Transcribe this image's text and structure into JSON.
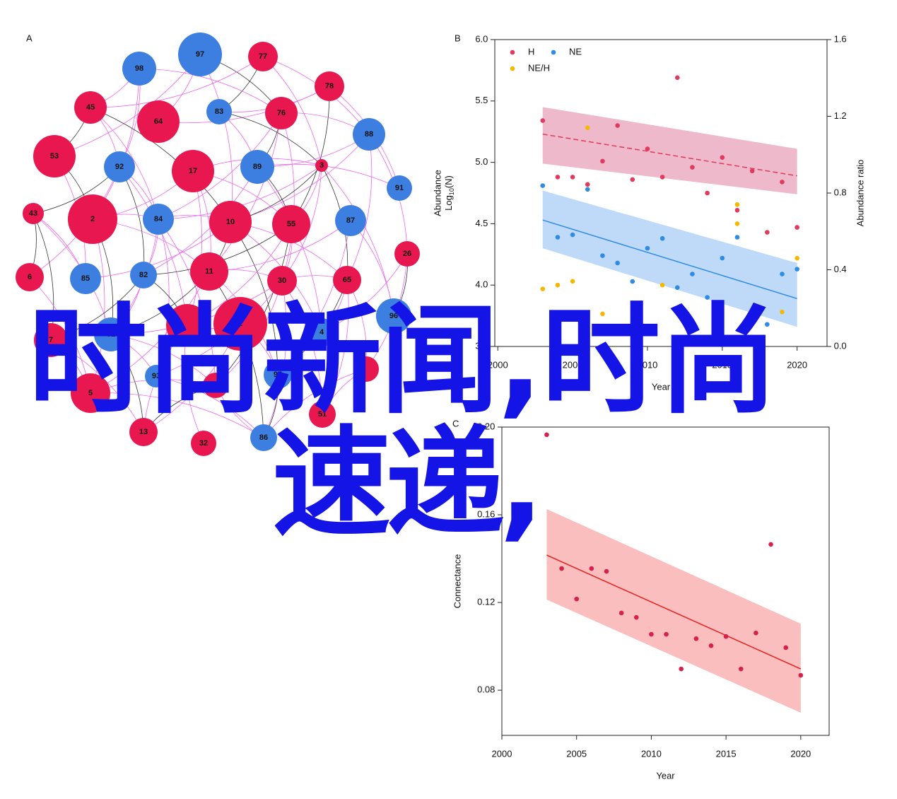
{
  "panel_a": {
    "label": "A",
    "nodes": [
      {
        "label": "97",
        "color": "#3d7fe0"
      },
      {
        "label": "77",
        "color": "#e8174f"
      },
      {
        "label": "98",
        "color": "#3d7fe0"
      },
      {
        "label": "78",
        "color": "#e8174f"
      },
      {
        "label": "45",
        "color": "#e8174f"
      },
      {
        "label": "64",
        "color": "#e8174f"
      },
      {
        "label": "83",
        "color": "#3d7fe0"
      },
      {
        "label": "76",
        "color": "#e8174f"
      },
      {
        "label": "88",
        "color": "#3d7fe0"
      },
      {
        "label": "53",
        "color": "#e8174f"
      },
      {
        "label": "92",
        "color": "#3d7fe0"
      },
      {
        "label": "17",
        "color": "#e8174f"
      },
      {
        "label": "89",
        "color": "#3d7fe0"
      },
      {
        "label": "3",
        "color": "#e8174f"
      },
      {
        "label": "91",
        "color": "#3d7fe0"
      },
      {
        "label": "43",
        "color": "#e8174f"
      },
      {
        "label": "2",
        "color": "#e8174f"
      },
      {
        "label": "84",
        "color": "#3d7fe0"
      },
      {
        "label": "10",
        "color": "#e8174f"
      },
      {
        "label": "55",
        "color": "#e8174f"
      },
      {
        "label": "87",
        "color": "#3d7fe0"
      },
      {
        "label": "26",
        "color": "#e8174f"
      },
      {
        "label": "6",
        "color": "#e8174f"
      },
      {
        "label": "85",
        "color": "#3d7fe0"
      },
      {
        "label": "82",
        "color": "#3d7fe0"
      },
      {
        "label": "11",
        "color": "#e8174f"
      },
      {
        "label": "30",
        "color": "#e8174f"
      },
      {
        "label": "65",
        "color": "#e8174f"
      },
      {
        "label": "96",
        "color": "#3d7fe0"
      },
      {
        "label": "1",
        "color": "#e8174f"
      },
      {
        "label": "81",
        "color": "#3d7fe0"
      },
      {
        "label": "7",
        "color": "#e8174f"
      },
      {
        "label": "4",
        "color": "#3d7fe0"
      },
      {
        "label": "93",
        "color": "#3d7fe0"
      },
      {
        "label": "95",
        "color": "#3d7fe0"
      },
      {
        "label": "5",
        "color": "#e8174f"
      },
      {
        "label": "51",
        "color": "#e8174f"
      },
      {
        "label": "13",
        "color": "#e8174f"
      },
      {
        "label": "32",
        "color": "#e8174f"
      },
      {
        "label": "86",
        "color": "#3d7fe0"
      }
    ]
  },
  "chart_data": [
    {
      "type": "scatter",
      "panel": "B",
      "xlabel": "Year",
      "ylabel": "Abundance",
      "ylabel_log": "Log",
      "ylabel_sub": "10",
      "ylabel_tail": "(N)",
      "y2label": "Abundance ratio",
      "xlim": [
        1999.8,
        2022
      ],
      "xticks": [
        2000,
        2005,
        2010,
        2015,
        2020
      ],
      "ylim": [
        3.5,
        6
      ],
      "yticks": [
        3.5,
        {
          "value": 4,
          "label": "4.0"
        },
        4.5,
        {
          "value": 5,
          "label": "5.0"
        },
        5.5,
        {
          "value": 6,
          "label": "6.0"
        }
      ],
      "y2lim": [
        0,
        1.6
      ],
      "y2ticks": [
        {
          "value": 0,
          "label": "0.0"
        },
        0.4,
        0.8,
        1.2,
        1.6
      ],
      "series": [
        {
          "name": "H",
          "color": "#e03a5e",
          "x": [
            2003,
            2004,
            2005,
            2006,
            2007,
            2008,
            2009,
            2010,
            2011,
            2012,
            2013,
            2014,
            2015,
            2016,
            2017,
            2018,
            2019,
            2020
          ],
          "values": [
            5.34,
            4.88,
            4.88,
            4.82,
            5.01,
            5.3,
            4.86,
            5.11,
            4.88,
            5.69,
            4.96,
            4.75,
            5.04,
            4.61,
            4.93,
            4.43,
            4.84,
            4.47
          ],
          "fit": {
            "x": [
              2003,
              2020
            ],
            "values": [
              5.23,
              4.89
            ],
            "low": [
              4.99,
              4.74
            ],
            "high": [
              5.45,
              5.11
            ],
            "dashed": true,
            "band_color": "#e8a2b8"
          }
        },
        {
          "name": "NE",
          "color": "#2e8be6",
          "x": [
            2003,
            2004,
            2005,
            2006,
            2007,
            2008,
            2009,
            2010,
            2011,
            2012,
            2013,
            2014,
            2015,
            2016,
            2017,
            2018,
            2019,
            2020
          ],
          "values": [
            4.81,
            4.39,
            4.41,
            4.78,
            4.24,
            4.18,
            4.03,
            4.3,
            4.38,
            3.98,
            4.09,
            3.9,
            4.22,
            4.39,
            3.75,
            3.68,
            4.09,
            4.13
          ],
          "fit": {
            "x": [
              2003,
              2020
            ],
            "values": [
              4.53,
              3.89
            ],
            "low": [
              4.3,
              3.66
            ],
            "high": [
              4.77,
              4.18
            ],
            "dashed": false,
            "band_color": "#a9cdf5"
          }
        },
        {
          "name": "NE/H",
          "color": "#f5b800",
          "axis": "y2",
          "x": [
            2003,
            2004,
            2005,
            2006,
            2007,
            2008,
            2011,
            2012,
            2016,
            2016,
            2019,
            2020
          ],
          "values": [
            0.3,
            0.32,
            0.34,
            1.14,
            0.17,
            0.07,
            0.32,
            0.01,
            0.74,
            0.64,
            0.18,
            0.46
          ]
        }
      ]
    },
    {
      "type": "scatter",
      "panel": "C",
      "xlabel": "Year",
      "ylabel": "Connectance",
      "xlim": [
        2000,
        2021.9
      ],
      "xticks": [
        2000,
        2005,
        2010,
        2015,
        2020
      ],
      "ylim": [
        0.0594,
        0.2
      ],
      "yticks": [
        0.08,
        0.12,
        0.16,
        {
          "value": 0.2,
          "label": "0.20"
        }
      ],
      "series": [
        {
          "color": "#d8204e",
          "x": [
            2003,
            2004,
            2005,
            2006,
            2007,
            2008,
            2009,
            2010,
            2011,
            2012,
            2013,
            2014,
            2015,
            2016,
            2017,
            2018,
            2019,
            2020
          ],
          "values": [
            0.1965,
            0.1355,
            0.1216,
            0.1355,
            0.1342,
            0.1152,
            0.1132,
            0.1055,
            0.1055,
            0.0897,
            0.1035,
            0.1003,
            0.1045,
            0.0897,
            0.1061,
            0.1465,
            0.0994,
            0.0868
          ],
          "fit": {
            "x": [
              2003,
              2020
            ],
            "values": [
              0.1416,
              0.0897
            ],
            "low": [
              0.1213,
              0.0697
            ],
            "high": [
              0.1626,
              0.1103
            ],
            "dashed": false,
            "color": "#e82020",
            "band_color": "#f8a8a8"
          }
        }
      ]
    }
  ],
  "overlay": {
    "line1": "时尚新闻,时尚",
    "line2": "速递,"
  }
}
